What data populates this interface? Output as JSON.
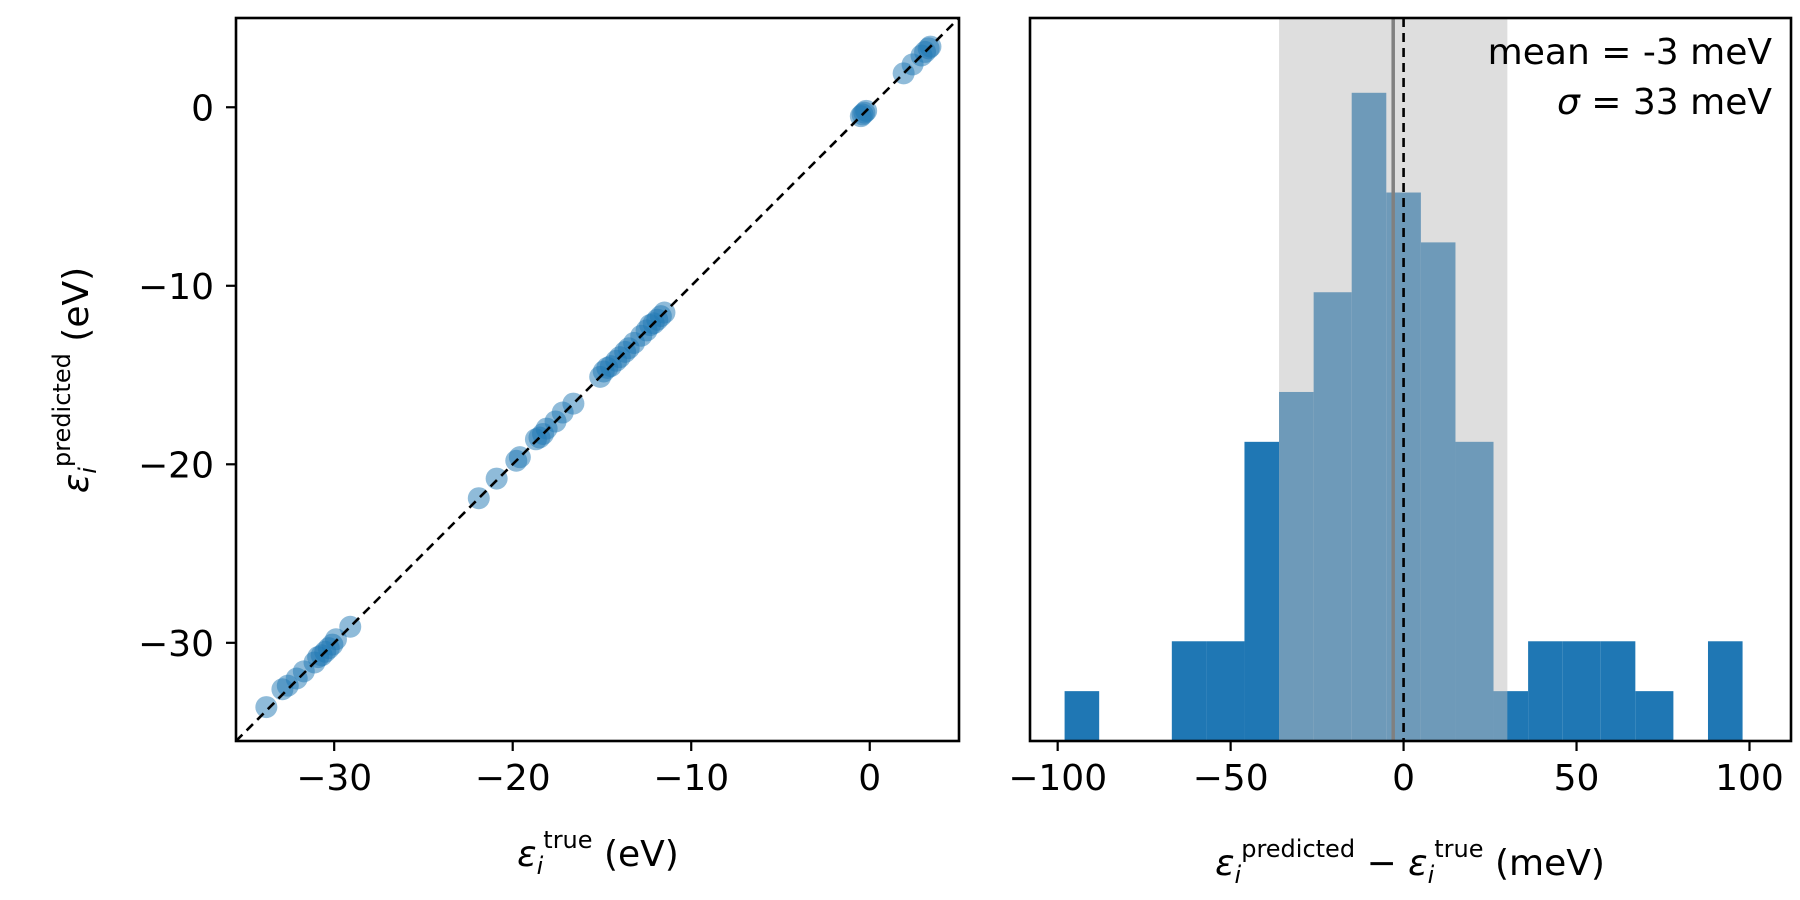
{
  "colors": {
    "points": "#1f77b4",
    "bars": "#1f77b4",
    "std_band": "#bebebe",
    "mean_line": "#808080",
    "zero_line": "#000000"
  },
  "chart_data": [
    {
      "type": "scatter",
      "xlabel": {
        "base": "ε",
        "sub": "i",
        "sup": "true",
        "unit": " (eV)"
      },
      "ylabel": {
        "base": "ε",
        "sub": "i",
        "sup": "predicted",
        "unit": " (eV)"
      },
      "xlim": [
        -35.5,
        5.0
      ],
      "ylim": [
        -35.5,
        5.0
      ],
      "xticks": [
        -30,
        -20,
        -10,
        0
      ],
      "yticks": [
        0,
        -10,
        -20,
        -30
      ],
      "grid": false,
      "reference_line": "y = x (dashed)",
      "points": [
        [
          -33.8,
          -33.6
        ],
        [
          -32.9,
          -32.6
        ],
        [
          -32.6,
          -32.4
        ],
        [
          -32.1,
          -32.0
        ],
        [
          -31.7,
          -31.6
        ],
        [
          -31.1,
          -31.1
        ],
        [
          -30.9,
          -30.8
        ],
        [
          -30.7,
          -30.7
        ],
        [
          -30.5,
          -30.5
        ],
        [
          -30.3,
          -30.3
        ],
        [
          -30.1,
          -30.1
        ],
        [
          -29.9,
          -29.8
        ],
        [
          -29.1,
          -29.1
        ],
        [
          -21.9,
          -21.9
        ],
        [
          -20.9,
          -20.8
        ],
        [
          -19.8,
          -19.8
        ],
        [
          -19.6,
          -19.6
        ],
        [
          -18.7,
          -18.6
        ],
        [
          -18.5,
          -18.5
        ],
        [
          -18.3,
          -18.3
        ],
        [
          -18.1,
          -18.0
        ],
        [
          -17.6,
          -17.6
        ],
        [
          -17.2,
          -17.1
        ],
        [
          -16.6,
          -16.6
        ],
        [
          -15.1,
          -15.1
        ],
        [
          -14.9,
          -14.8
        ],
        [
          -14.7,
          -14.6
        ],
        [
          -14.5,
          -14.5
        ],
        [
          -14.2,
          -14.2
        ],
        [
          -14.0,
          -14.0
        ],
        [
          -13.7,
          -13.7
        ],
        [
          -13.5,
          -13.5
        ],
        [
          -13.2,
          -13.2
        ],
        [
          -12.8,
          -12.8
        ],
        [
          -12.5,
          -12.5
        ],
        [
          -12.3,
          -12.2
        ],
        [
          -12.1,
          -12.1
        ],
        [
          -11.9,
          -11.9
        ],
        [
          -11.7,
          -11.7
        ],
        [
          -11.5,
          -11.5
        ],
        [
          -0.5,
          -0.5
        ],
        [
          -0.4,
          -0.4
        ],
        [
          -0.3,
          -0.3
        ],
        [
          -0.2,
          -0.2
        ],
        [
          1.9,
          1.9
        ],
        [
          2.4,
          2.4
        ],
        [
          2.9,
          2.9
        ],
        [
          3.1,
          3.1
        ],
        [
          3.3,
          3.3
        ],
        [
          3.4,
          3.4
        ]
      ]
    },
    {
      "type": "histogram",
      "xlabel": {
        "base1": "ε",
        "sub1": "i",
        "sup1": "predicted",
        "mid": " − ",
        "base2": "ε",
        "sub2": "i",
        "sup2": "true",
        "unit": " (meV)"
      },
      "xlim": [
        -108,
        112
      ],
      "ylim": [
        0,
        14.5
      ],
      "xticks": [
        -100,
        -50,
        0,
        50,
        100
      ],
      "yticks": [],
      "bin_edges": [
        -98,
        -88,
        -78,
        -67,
        -57,
        -46,
        -36,
        -26,
        -15,
        -5,
        5,
        15,
        26,
        36,
        46,
        57,
        67,
        78,
        88,
        98,
        109
      ],
      "counts": [
        1,
        0,
        0,
        2,
        2,
        6,
        7,
        9,
        13,
        11,
        10,
        6,
        1,
        2,
        2,
        2,
        1,
        0,
        2,
        0
      ],
      "mean": -3,
      "std": 33,
      "zero_line": 0,
      "annotation": {
        "line1": "mean = -3 meV",
        "line2_sym": "σ",
        "line2_rest": " = 33 meV"
      }
    }
  ]
}
